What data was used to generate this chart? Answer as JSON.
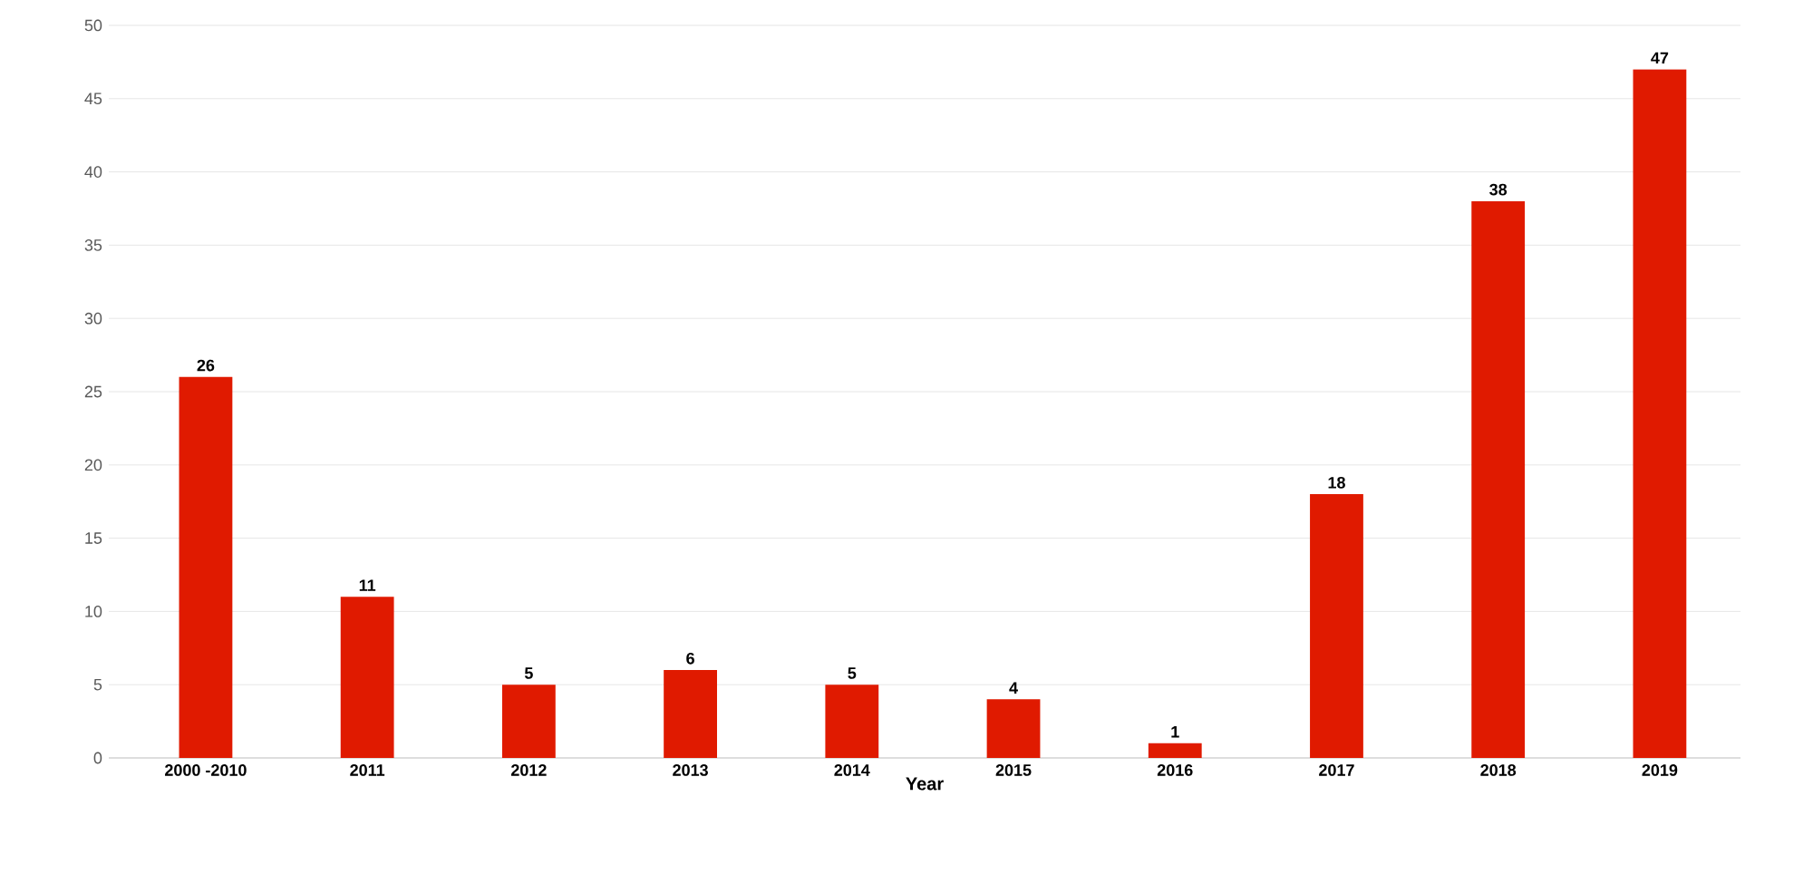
{
  "chart_data": {
    "type": "bar",
    "xlabel": "Year",
    "categories": [
      "2000 -2010",
      "2011",
      "2012",
      "2013",
      "2014",
      "2015",
      "2016",
      "2017",
      "2018",
      "2019"
    ],
    "values": [
      26,
      11,
      5,
      6,
      5,
      4,
      1,
      18,
      38,
      47
    ],
    "color": "#e01a00",
    "ylim": [
      0,
      50
    ],
    "yticks": [
      0,
      5,
      10,
      15,
      20,
      25,
      30,
      35,
      40,
      45,
      50
    ],
    "grid": "y",
    "data_labels": true
  }
}
